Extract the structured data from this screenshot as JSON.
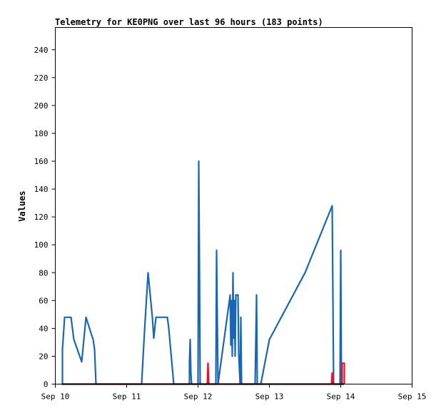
{
  "chart_data": {
    "type": "line",
    "title": "Telemetry for KE0PNG over last 96 hours (183 points)",
    "xlabel": "",
    "ylabel": "Values",
    "xlim": [
      0,
      5
    ],
    "ylim": [
      0,
      256
    ],
    "x_ticks": [
      {
        "v": 0,
        "label": "Sep 10"
      },
      {
        "v": 1,
        "label": "Sep 11"
      },
      {
        "v": 2,
        "label": "Sep 12"
      },
      {
        "v": 3,
        "label": "Sep 13"
      },
      {
        "v": 4,
        "label": "Sep 14"
      },
      {
        "v": 5,
        "label": "Sep 15"
      }
    ],
    "y_ticks": [
      0,
      20,
      40,
      60,
      80,
      100,
      120,
      140,
      160,
      180,
      200,
      220,
      240
    ],
    "x_unit_note": "days since Sep 10",
    "grid": false,
    "legend": "none",
    "series": [
      {
        "color": "#1a66b3",
        "points": [
          [
            0.09,
            0
          ],
          [
            0.1,
            0
          ],
          [
            0.1,
            25
          ],
          [
            0.12,
            40
          ],
          [
            0.13,
            48
          ],
          [
            0.22,
            48
          ],
          [
            0.26,
            32
          ],
          [
            0.37,
            16
          ],
          [
            0.43,
            48
          ],
          [
            0.51,
            35
          ],
          [
            0.53,
            32
          ],
          [
            0.55,
            25
          ],
          [
            0.57,
            0
          ],
          [
            0.58,
            0
          ],
          [
            0.64,
            0
          ],
          [
            0.7,
            0
          ],
          [
            0.8,
            0
          ],
          [
            1.0,
            0
          ],
          [
            1.21,
            0
          ],
          [
            1.22,
            10
          ],
          [
            1.25,
            38
          ],
          [
            1.3,
            80
          ],
          [
            1.36,
            48
          ],
          [
            1.38,
            33
          ],
          [
            1.41,
            48
          ],
          [
            1.57,
            48
          ],
          [
            1.59,
            40
          ],
          [
            1.66,
            0
          ],
          [
            1.8,
            0
          ],
          [
            1.88,
            0
          ],
          [
            1.88,
            16
          ],
          [
            1.89,
            32
          ],
          [
            1.9,
            8
          ],
          [
            1.91,
            0
          ],
          [
            1.93,
            0
          ],
          [
            2.0,
            0
          ],
          [
            2.01,
            160
          ],
          [
            2.02,
            87
          ],
          [
            2.03,
            0
          ],
          [
            2.06,
            0
          ],
          [
            2.07,
            0
          ],
          [
            2.08,
            0
          ],
          [
            2.16,
            0
          ],
          [
            2.17,
            0
          ],
          [
            2.25,
            0
          ],
          [
            2.26,
            96
          ],
          [
            2.27,
            48
          ],
          [
            2.28,
            0
          ],
          [
            2.45,
            64
          ],
          [
            2.46,
            28
          ],
          [
            2.47,
            60
          ],
          [
            2.48,
            20
          ],
          [
            2.49,
            80
          ],
          [
            2.5,
            33
          ],
          [
            2.51,
            60
          ],
          [
            2.52,
            20
          ],
          [
            2.53,
            64
          ],
          [
            2.56,
            64
          ],
          [
            2.57,
            22
          ],
          [
            2.59,
            0
          ],
          [
            2.6,
            48
          ],
          [
            2.61,
            0
          ],
          [
            2.64,
            0
          ],
          [
            2.8,
            0
          ],
          [
            2.82,
            64
          ],
          [
            2.83,
            0
          ],
          [
            2.87,
            0
          ],
          [
            2.88,
            0
          ],
          [
            3.0,
            32
          ],
          [
            3.5,
            80
          ],
          [
            3.88,
            128
          ],
          [
            3.89,
            65
          ],
          [
            3.9,
            0
          ],
          [
            3.99,
            0
          ],
          [
            4.0,
            96
          ],
          [
            4.01,
            0
          ],
          [
            4.05,
            0
          ]
        ]
      },
      {
        "color": "#e8102a",
        "points": [
          [
            0.09,
            0
          ],
          [
            2.13,
            0
          ],
          [
            2.14,
            15
          ],
          [
            2.15,
            0
          ],
          [
            3.87,
            0
          ],
          [
            3.88,
            8
          ],
          [
            3.89,
            0
          ],
          [
            4.02,
            0
          ],
          [
            4.02,
            15
          ],
          [
            4.05,
            15
          ],
          [
            4.05,
            0
          ]
        ]
      },
      {
        "color": "#000000",
        "points": [
          [
            0.09,
            0
          ],
          [
            4.05,
            0
          ]
        ]
      }
    ]
  }
}
